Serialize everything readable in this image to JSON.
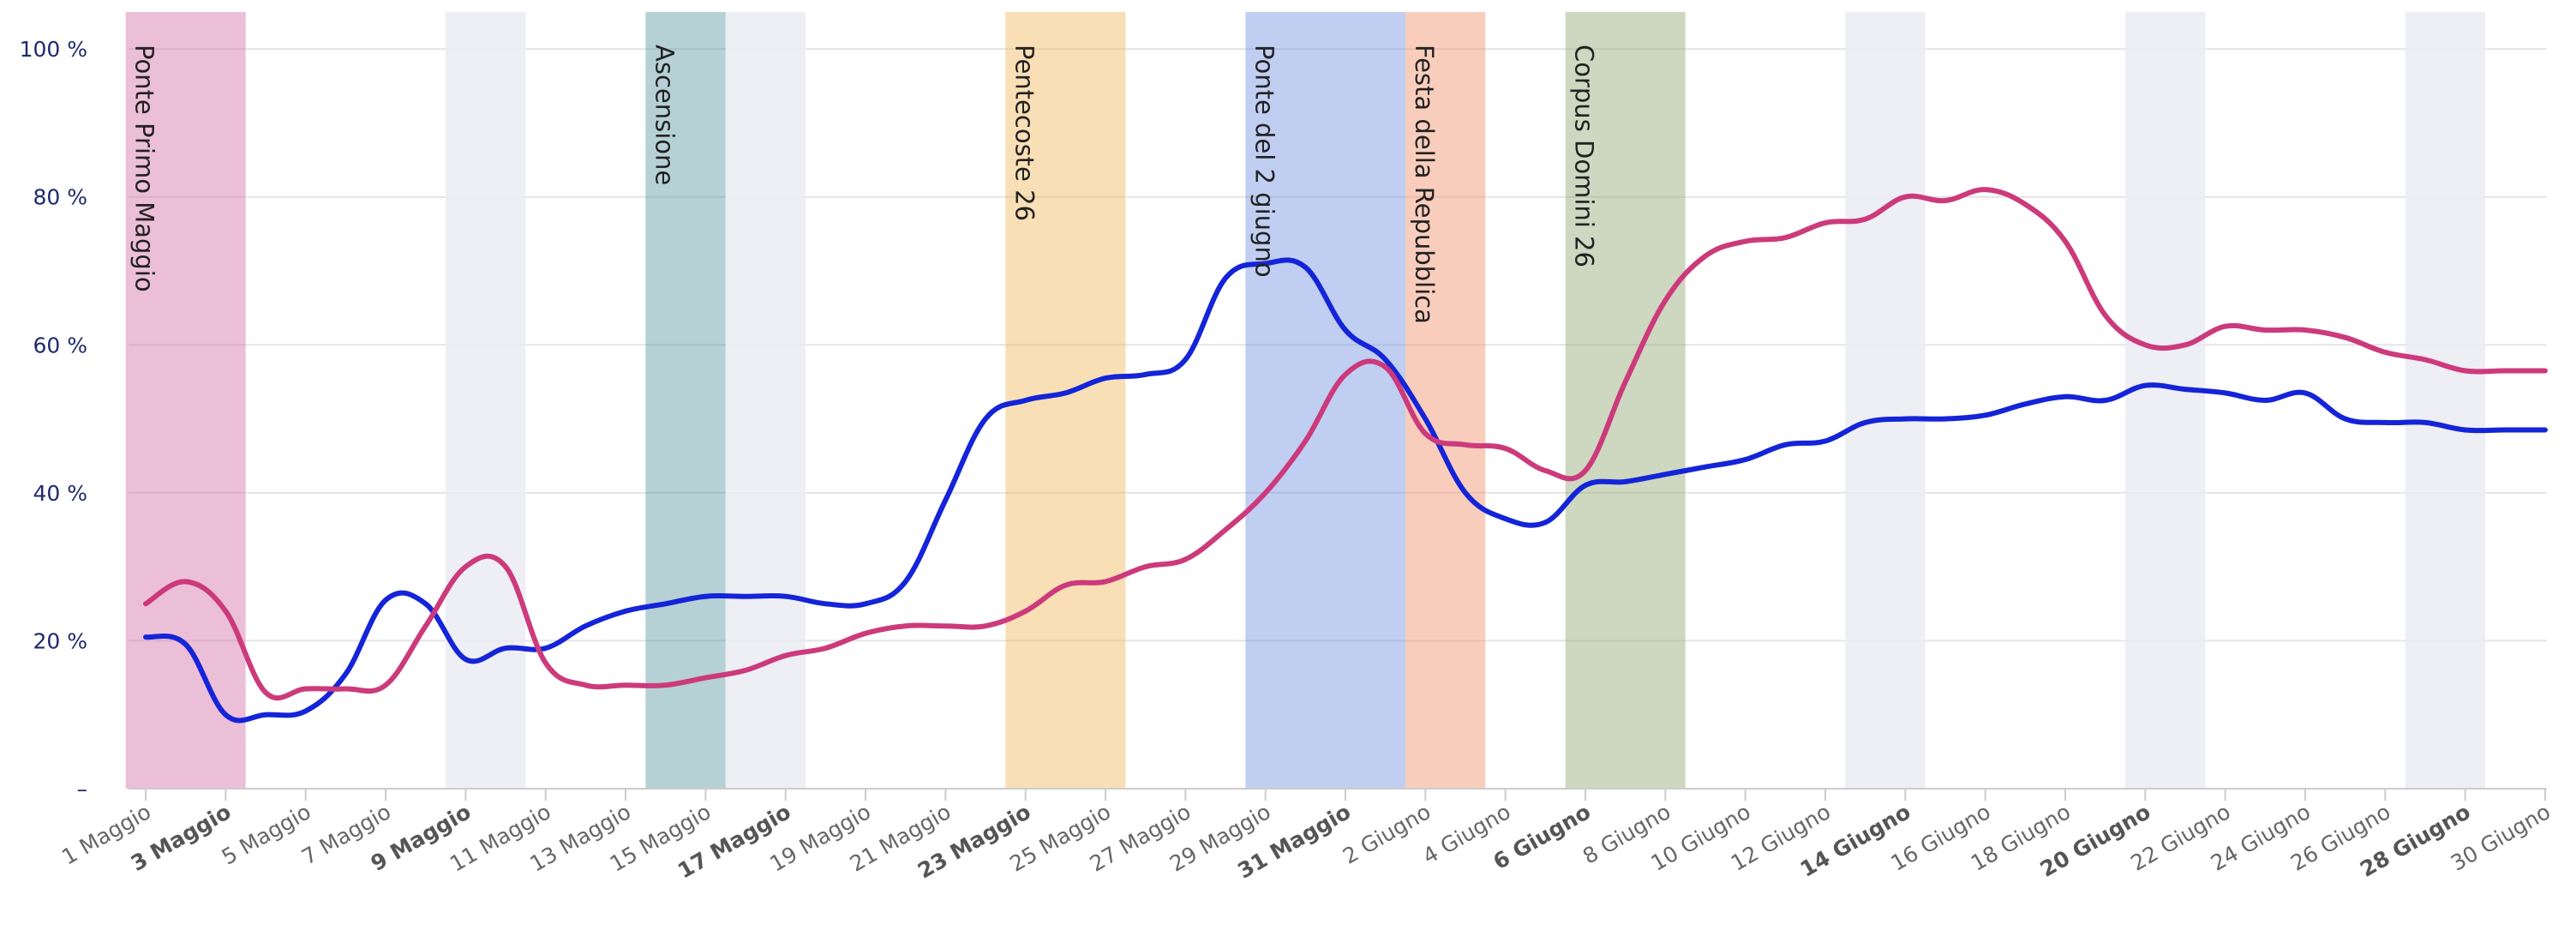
{
  "chart_data": {
    "type": "line",
    "title": "",
    "xlabel": "",
    "ylabel": "",
    "ylim": [
      0,
      105
    ],
    "yticks": [
      {
        "value": 0,
        "label": "–"
      },
      {
        "value": 20,
        "label": "20 %"
      },
      {
        "value": 40,
        "label": "40 %"
      },
      {
        "value": 60,
        "label": "60 %"
      },
      {
        "value": 80,
        "label": "80 %"
      },
      {
        "value": 100,
        "label": "100 %"
      }
    ],
    "day_count": 61,
    "xticks": [
      {
        "day": 0,
        "label": "1 Maggio",
        "bold": false
      },
      {
        "day": 2,
        "label": "3 Maggio",
        "bold": true
      },
      {
        "day": 4,
        "label": "5 Maggio",
        "bold": false
      },
      {
        "day": 6,
        "label": "7 Maggio",
        "bold": false
      },
      {
        "day": 8,
        "label": "9 Maggio",
        "bold": true
      },
      {
        "day": 10,
        "label": "11 Maggio",
        "bold": false
      },
      {
        "day": 12,
        "label": "13 Maggio",
        "bold": false
      },
      {
        "day": 14,
        "label": "15 Maggio",
        "bold": false
      },
      {
        "day": 16,
        "label": "17 Maggio",
        "bold": true
      },
      {
        "day": 18,
        "label": "19 Maggio",
        "bold": false
      },
      {
        "day": 20,
        "label": "21 Maggio",
        "bold": false
      },
      {
        "day": 22,
        "label": "23 Maggio",
        "bold": true
      },
      {
        "day": 24,
        "label": "25 Maggio",
        "bold": false
      },
      {
        "day": 26,
        "label": "27 Maggio",
        "bold": false
      },
      {
        "day": 28,
        "label": "29 Maggio",
        "bold": false
      },
      {
        "day": 30,
        "label": "31 Maggio",
        "bold": true
      },
      {
        "day": 32,
        "label": "2 Giugno",
        "bold": false
      },
      {
        "day": 34,
        "label": "4 Giugno",
        "bold": false
      },
      {
        "day": 36,
        "label": "6 Giugno",
        "bold": true
      },
      {
        "day": 38,
        "label": "8 Giugno",
        "bold": false
      },
      {
        "day": 40,
        "label": "10 Giugno",
        "bold": false
      },
      {
        "day": 42,
        "label": "12 Giugno",
        "bold": false
      },
      {
        "day": 44,
        "label": "14 Giugno",
        "bold": true
      },
      {
        "day": 46,
        "label": "16 Giugno",
        "bold": false
      },
      {
        "day": 48,
        "label": "18 Giugno",
        "bold": false
      },
      {
        "day": 50,
        "label": "20 Giugno",
        "bold": true
      },
      {
        "day": 52,
        "label": "22 Giugno",
        "bold": false
      },
      {
        "day": 54,
        "label": "24 Giugno",
        "bold": false
      },
      {
        "day": 56,
        "label": "26 Giugno",
        "bold": false
      },
      {
        "day": 58,
        "label": "28 Giugno",
        "bold": true
      },
      {
        "day": 60,
        "label": "30 Giugno",
        "bold": false
      }
    ],
    "weekend_bands": [
      {
        "from": 7.5,
        "to": 9.5
      },
      {
        "from": 14.5,
        "to": 16.5
      },
      {
        "from": 42.5,
        "to": 44.5
      },
      {
        "from": 49.5,
        "to": 51.5
      },
      {
        "from": 56.5,
        "to": 58.5
      }
    ],
    "holiday_bands": [
      {
        "from": -0.5,
        "to": 2.5,
        "label": "Ponte Primo Maggio",
        "color": "#d470a8"
      },
      {
        "from": 12.5,
        "to": 14.5,
        "label": "Ascensione",
        "color": "#5e9aa4"
      },
      {
        "from": 21.5,
        "to": 24.5,
        "label": "Pentecoste 26",
        "color": "#f1b75c"
      },
      {
        "from": 27.5,
        "to": 31.5,
        "label": "Ponte del 2 giugno",
        "color": "#7393e0"
      },
      {
        "from": 31.5,
        "to": 33.5,
        "label": "Festa della Repubblica",
        "color": "#f2906a"
      },
      {
        "from": 35.5,
        "to": 38.5,
        "label": "Corpus Domini 26",
        "color": "#93a773"
      }
    ],
    "series": [
      {
        "color": "#1424d8",
        "values": [
          20.5,
          19.5,
          10.0,
          10.0,
          10.5,
          15.5,
          25.5,
          25.0,
          17.5,
          19.0,
          19.0,
          22.0,
          24.0,
          25.0,
          26.0,
          26.0,
          26.0,
          25.0,
          25.0,
          28.0,
          39.0,
          50.0,
          52.5,
          53.5,
          55.5,
          56.0,
          58.0,
          69.0,
          71.0,
          70.5,
          62.0,
          58.0,
          50.0,
          40.0,
          36.5,
          36.0,
          41.0,
          41.5,
          42.5,
          43.5,
          44.5,
          46.5,
          47.0,
          49.5,
          50.0,
          50.0,
          50.5,
          52.0,
          53.0,
          52.5,
          54.5,
          54.0,
          53.5,
          52.5,
          53.5,
          50.0,
          49.5,
          49.5,
          48.5,
          48.5,
          48.5
        ]
      },
      {
        "color": "#cc3a7c",
        "values": [
          25.0,
          28.0,
          24.0,
          13.0,
          13.5,
          13.5,
          14.0,
          22.0,
          30.0,
          30.0,
          17.0,
          14.0,
          14.0,
          14.0,
          15.0,
          16.0,
          18.0,
          19.0,
          21.0,
          22.0,
          22.0,
          22.0,
          24.0,
          27.5,
          28.0,
          30.0,
          31.0,
          35.0,
          40.0,
          47.0,
          56.0,
          57.0,
          48.0,
          46.5,
          46.0,
          43.0,
          43.0,
          55.0,
          66.0,
          72.0,
          74.0,
          74.5,
          76.5,
          77.0,
          80.0,
          79.5,
          81.0,
          79.0,
          74.0,
          64.0,
          60.0,
          60.0,
          62.5,
          62.0,
          62.0,
          61.0,
          59.0,
          58.0,
          56.5,
          56.5,
          56.5
        ]
      }
    ]
  }
}
